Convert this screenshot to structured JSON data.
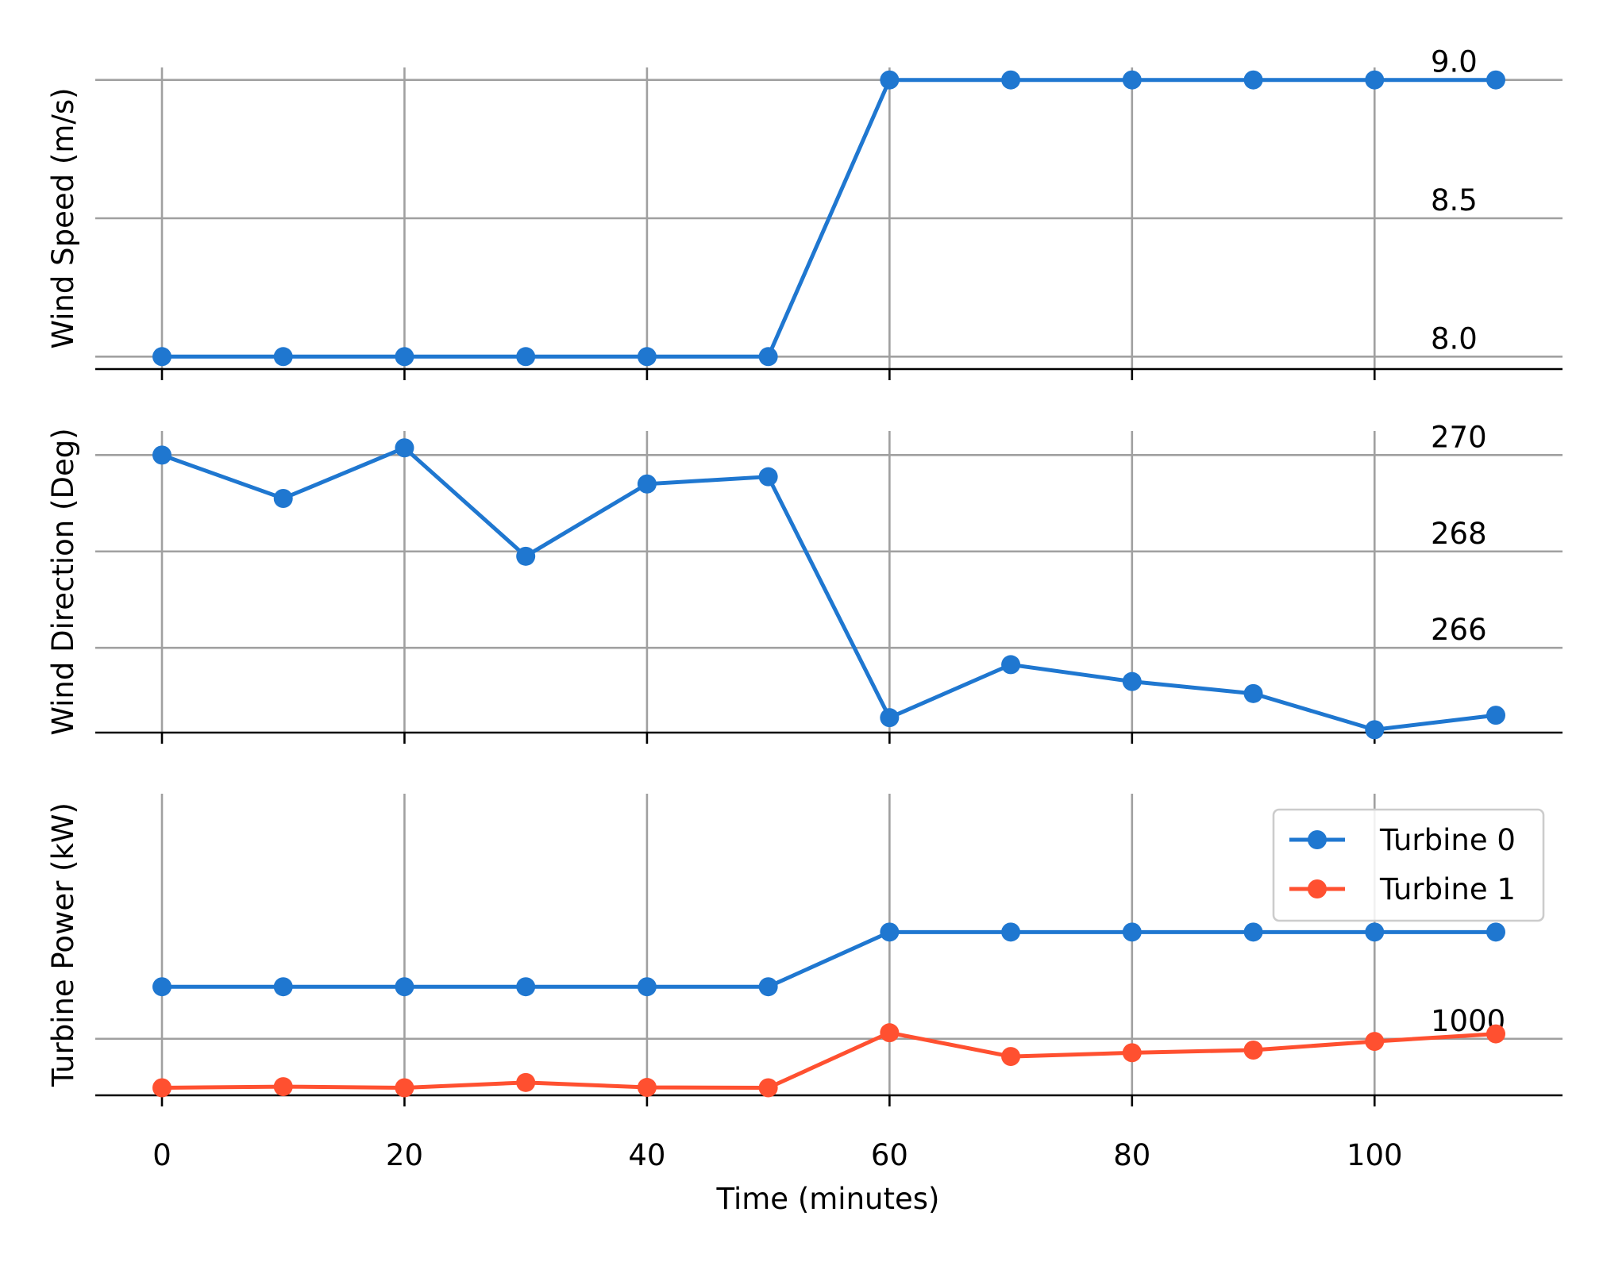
{
  "chart_data": [
    {
      "type": "line",
      "ylabel": "Wind Speed (m/s)",
      "xlim": [
        -5.5,
        115.5
      ],
      "ylim": [
        7.955,
        9.045
      ],
      "xticks": [
        0,
        20,
        40,
        60,
        80,
        100
      ],
      "yticks": [
        8.0,
        8.5,
        9.0
      ],
      "ytick_labels": [
        "8.0",
        "8.5",
        "9.0"
      ],
      "grid": true,
      "series": [
        {
          "color": "#1f77d0",
          "x": [
            0,
            10,
            20,
            30,
            40,
            50,
            60,
            70,
            80,
            90,
            100,
            110
          ],
          "values": [
            8.0,
            8.0,
            8.0,
            8.0,
            8.0,
            8.0,
            9.0,
            9.0,
            9.0,
            9.0,
            9.0,
            9.0
          ]
        }
      ]
    },
    {
      "type": "line",
      "ylabel": "Wind Direction (Deg)",
      "xlim": [
        -5.5,
        115.5
      ],
      "ylim": [
        264.24,
        270.5
      ],
      "xticks": [
        0,
        20,
        40,
        60,
        80,
        100
      ],
      "yticks": [
        266,
        268,
        270
      ],
      "ytick_labels": [
        "266",
        "268",
        "270"
      ],
      "grid": true,
      "series": [
        {
          "color": "#1f77d0",
          "x": [
            0,
            10,
            20,
            30,
            40,
            50,
            60,
            70,
            80,
            90,
            100,
            110
          ],
          "values": [
            270.0,
            269.1,
            270.15,
            267.9,
            269.4,
            269.55,
            264.55,
            265.65,
            265.3,
            265.05,
            264.3,
            264.6
          ]
        }
      ]
    },
    {
      "type": "line",
      "ylabel": "Turbine Power (kW)",
      "xlabel": "Time (minutes)",
      "xlim": [
        -5.5,
        115.5
      ],
      "ylim": [
        850,
        1650
      ],
      "xticks": [
        0,
        20,
        40,
        60,
        80,
        100
      ],
      "xtick_labels": [
        "0",
        "20",
        "40",
        "60",
        "80",
        "100"
      ],
      "yticks": [
        1000
      ],
      "ytick_labels": [
        "1000"
      ],
      "grid": true,
      "legend_position": "upper-right",
      "series": [
        {
          "name": "Turbine 0",
          "color": "#1f77d0",
          "x": [
            0,
            10,
            20,
            30,
            40,
            50,
            60,
            70,
            80,
            90,
            100,
            110
          ],
          "values": [
            1138,
            1138,
            1138,
            1138,
            1138,
            1138,
            1283,
            1283,
            1283,
            1283,
            1283,
            1283
          ]
        },
        {
          "name": "Turbine 1",
          "color": "#ff5030",
          "x": [
            0,
            10,
            20,
            30,
            40,
            50,
            60,
            70,
            80,
            90,
            100,
            110
          ],
          "values": [
            870,
            873,
            870,
            884,
            871,
            870,
            1016,
            953,
            963,
            970,
            993,
            1013
          ]
        }
      ]
    }
  ]
}
